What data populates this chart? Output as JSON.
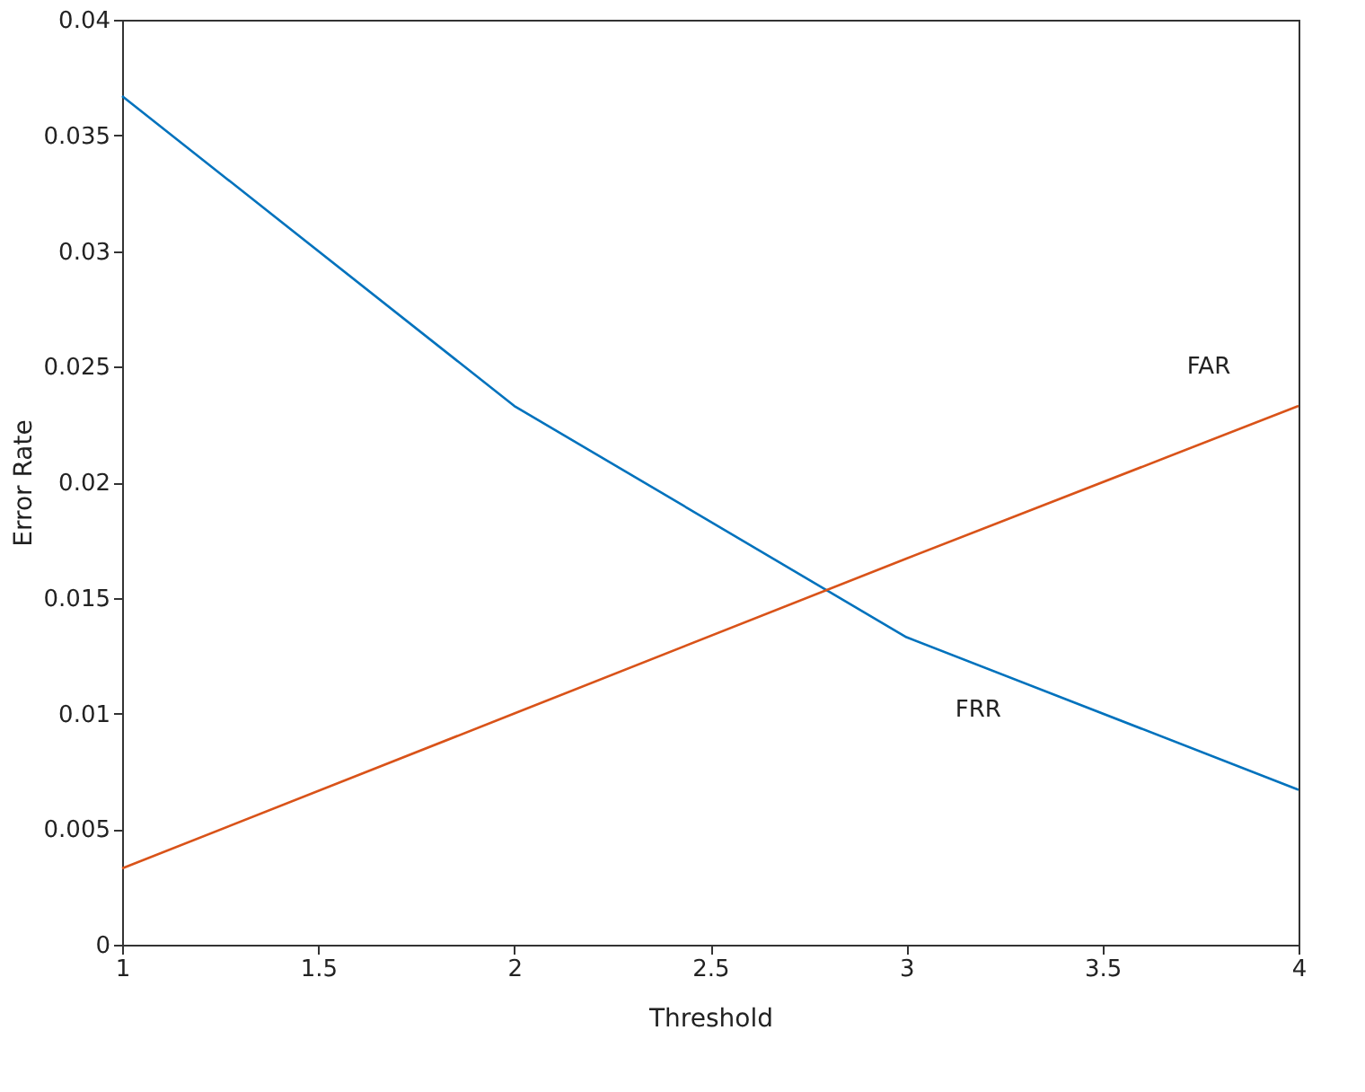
{
  "chart_data": {
    "type": "line",
    "xlabel": "Threshold",
    "ylabel": "Error Rate",
    "x": [
      1,
      2,
      3,
      4
    ],
    "series": [
      {
        "name": "FRR",
        "color": "#0072bd",
        "values": [
          0.0367,
          0.0233,
          0.0133,
          0.0067
        ]
      },
      {
        "name": "FAR",
        "color": "#d95319",
        "values": [
          0.0033,
          0.01,
          0.0167,
          0.0233
        ]
      }
    ],
    "xlim": [
      1,
      4
    ],
    "xticks": [
      1,
      1.5,
      2,
      2.5,
      3,
      3.5,
      4
    ],
    "ylim": [
      0,
      0.04
    ],
    "yticks": [
      0,
      0.005,
      0.01,
      0.015,
      0.02,
      0.025,
      0.03,
      0.035,
      0.04
    ],
    "grid": false,
    "legend": false,
    "marker": "none",
    "line_style": "solid"
  }
}
